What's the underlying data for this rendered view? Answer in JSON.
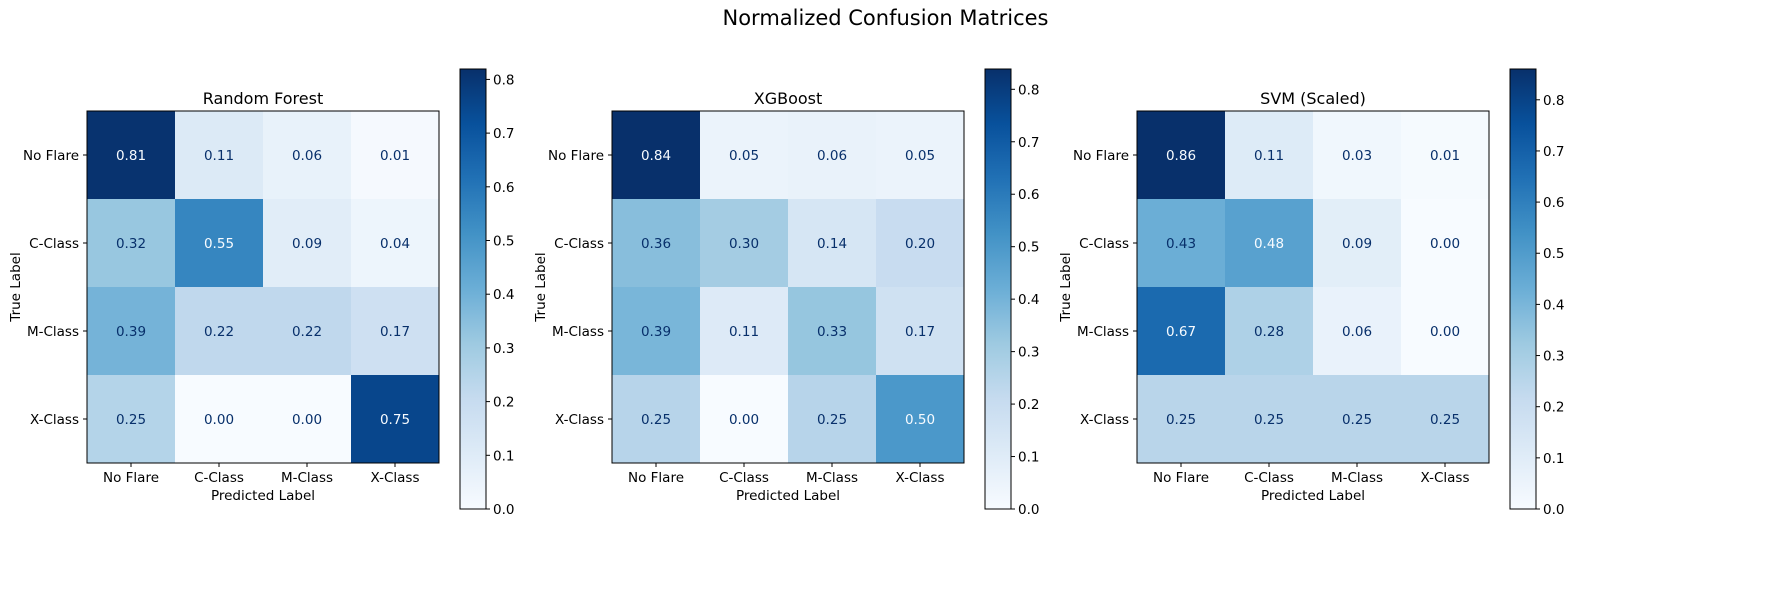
{
  "suptitle": "Normalized Confusion Matrices",
  "chart_data": [
    {
      "type": "heatmap",
      "title": "Random Forest",
      "xlabel": "Predicted Label",
      "ylabel": "True Label",
      "x_categories": [
        "No Flare",
        "C-Class",
        "M-Class",
        "X-Class"
      ],
      "y_categories": [
        "No Flare",
        "C-Class",
        "M-Class",
        "X-Class"
      ],
      "values": [
        [
          0.81,
          0.11,
          0.06,
          0.01
        ],
        [
          0.32,
          0.55,
          0.09,
          0.04
        ],
        [
          0.39,
          0.22,
          0.22,
          0.17
        ],
        [
          0.25,
          0.0,
          0.0,
          0.75
        ]
      ],
      "value_labels": [
        [
          "0.81",
          "0.11",
          "0.06",
          "0.01"
        ],
        [
          "0.32",
          "0.55",
          "0.09",
          "0.04"
        ],
        [
          "0.39",
          "0.22",
          "0.22",
          "0.17"
        ],
        [
          "0.25",
          "0.00",
          "0.00",
          "0.75"
        ]
      ],
      "colormap": "Blues",
      "colorbar_range": [
        0,
        0.8194
      ],
      "colorbar_ticks": [
        "0.0",
        "0.1",
        "0.2",
        "0.3",
        "0.4",
        "0.5",
        "0.6",
        "0.7",
        "0.8"
      ],
      "grid": false
    },
    {
      "type": "heatmap",
      "title": "XGBoost",
      "xlabel": "Predicted Label",
      "ylabel": "True Label",
      "x_categories": [
        "No Flare",
        "C-Class",
        "M-Class",
        "X-Class"
      ],
      "y_categories": [
        "No Flare",
        "C-Class",
        "M-Class",
        "X-Class"
      ],
      "values": [
        [
          0.84,
          0.05,
          0.06,
          0.05
        ],
        [
          0.36,
          0.3,
          0.14,
          0.2
        ],
        [
          0.39,
          0.11,
          0.33,
          0.17
        ],
        [
          0.25,
          0.0,
          0.25,
          0.5
        ]
      ],
      "value_labels": [
        [
          "0.84",
          "0.05",
          "0.06",
          "0.05"
        ],
        [
          "0.36",
          "0.30",
          "0.14",
          "0.20"
        ],
        [
          "0.39",
          "0.11",
          "0.33",
          "0.17"
        ],
        [
          "0.25",
          "0.00",
          "0.25",
          "0.50"
        ]
      ],
      "colormap": "Blues",
      "colorbar_range": [
        0,
        0.8387
      ],
      "colorbar_ticks": [
        "0.0",
        "0.1",
        "0.2",
        "0.3",
        "0.4",
        "0.5",
        "0.6",
        "0.7",
        "0.8"
      ],
      "grid": false
    },
    {
      "type": "heatmap",
      "title": "SVM (Scaled)",
      "xlabel": "Predicted Label",
      "ylabel": "True Label",
      "x_categories": [
        "No Flare",
        "C-Class",
        "M-Class",
        "X-Class"
      ],
      "y_categories": [
        "No Flare",
        "C-Class",
        "M-Class",
        "X-Class"
      ],
      "values": [
        [
          0.86,
          0.11,
          0.03,
          0.01
        ],
        [
          0.43,
          0.48,
          0.09,
          0.0
        ],
        [
          0.67,
          0.28,
          0.06,
          0.0
        ],
        [
          0.25,
          0.25,
          0.25,
          0.25
        ]
      ],
      "value_labels": [
        [
          "0.86",
          "0.11",
          "0.03",
          "0.01"
        ],
        [
          "0.43",
          "0.48",
          "0.09",
          "0.00"
        ],
        [
          "0.67",
          "0.28",
          "0.06",
          "0.00"
        ],
        [
          "0.25",
          "0.25",
          "0.25",
          "0.25"
        ]
      ],
      "colormap": "Blues",
      "colorbar_range": [
        0,
        0.8602
      ],
      "colorbar_ticks": [
        "0.0",
        "0.1",
        "0.2",
        "0.3",
        "0.4",
        "0.5",
        "0.6",
        "0.7",
        "0.8"
      ],
      "grid": false
    }
  ]
}
